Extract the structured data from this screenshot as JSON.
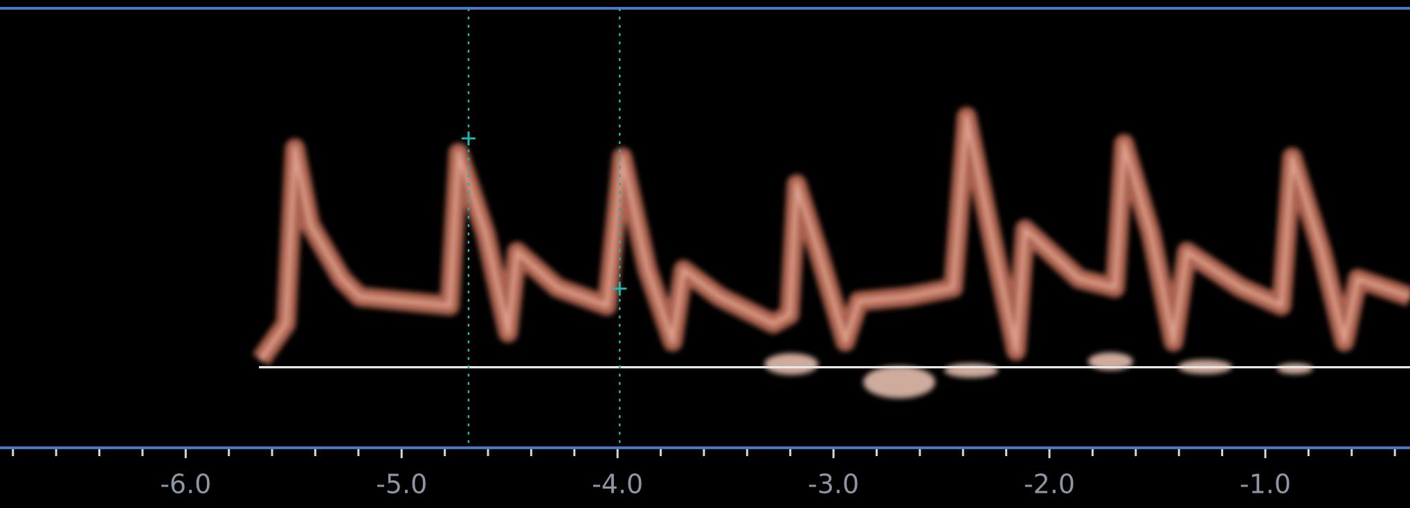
{
  "time_axis": {
    "xlim": [
      -6.86,
      -0.33
    ],
    "ticks": [
      {
        "value": -6,
        "label": "-6.0"
      },
      {
        "value": -5,
        "label": "-5.0"
      },
      {
        "value": -4,
        "label": "-4.0"
      },
      {
        "value": -3,
        "label": "-3.0"
      },
      {
        "value": -2,
        "label": "-2.0"
      },
      {
        "value": -1,
        "label": "-1.0"
      }
    ],
    "minor_ticks": [
      -6.8,
      -6.6,
      -6.4,
      -6.2,
      -5.8,
      -5.6,
      -5.4,
      -5.2,
      -4.8,
      -4.6,
      -4.4,
      -4.2,
      -3.8,
      -3.6,
      -3.4,
      -3.2,
      -2.8,
      -2.6,
      -2.4,
      -2.2,
      -1.8,
      -1.6,
      -1.4,
      -1.2,
      -0.8,
      -0.6,
      -0.4
    ],
    "cursors": [
      -4.69,
      -3.99
    ]
  }
}
